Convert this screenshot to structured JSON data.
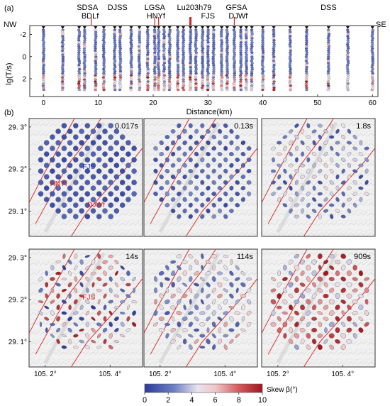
{
  "panel_a": {
    "label": "(a)",
    "corner_left": "NW",
    "corner_right": "SE",
    "fault_labels_upper": [
      {
        "text": "SDSA",
        "x": 8.0
      },
      {
        "text": "DJSS",
        "x": 13.5
      },
      {
        "text": "LGSA",
        "x": 20.3
      },
      {
        "text": "Lu203h79",
        "x": 27.5
      },
      {
        "text": "GFSA",
        "x": 35.2
      },
      {
        "text": "DSS",
        "x": 52.0
      }
    ],
    "fault_labels_lower": [
      {
        "text": "BDLf",
        "x": 8.5
      },
      {
        "text": "HNYf",
        "x": 20.5
      },
      {
        "text": "FJS",
        "x": 30.0
      },
      {
        "text": "DJWf",
        "x": 35.5
      }
    ],
    "fault_markers": [
      8.7,
      20.3,
      21.0,
      26.8,
      34.8
    ]
  },
  "panel_b": {
    "label": "(b)",
    "colorbar_label": "Skew β(°)",
    "colorbar_ticks": [
      "0",
      "2",
      "4",
      "6",
      "8",
      "10"
    ],
    "maps": [
      {
        "period": "0.017s",
        "annotations": [
          {
            "text": "HNYf",
            "lon": 105.215,
            "lat": 29.16,
            "color": "#d42020"
          },
          {
            "text": "FJS",
            "lon": 105.315,
            "lat": 29.2,
            "color": "#1e3aa8"
          },
          {
            "text": "DJWf",
            "lon": 105.33,
            "lat": 29.11,
            "color": "#d42020"
          }
        ]
      },
      {
        "period": "0.13s",
        "annotations": []
      },
      {
        "period": "1.8s",
        "annotations": []
      },
      {
        "period": "14s",
        "annotations": [
          {
            "text": "FJS",
            "lon": 105.315,
            "lat": 29.2,
            "color": "#d42020"
          }
        ]
      },
      {
        "period": "114s",
        "annotations": []
      },
      {
        "period": "909s",
        "annotations": []
      }
    ],
    "y_ticks": [
      "29. 3°",
      "29. 2°",
      "29. 1°"
    ],
    "x_ticks": [
      "105. 2°",
      "105. 4°"
    ]
  },
  "chart_data": [
    {
      "type": "scatter",
      "xlabel": "Distance(km)",
      "ylabel": "lg(T/s)",
      "xlim": [
        -2.5,
        61
      ],
      "ylim": [
        -2.8,
        3.6
      ],
      "x_ticks": [
        0,
        10,
        20,
        30,
        40,
        50,
        60
      ],
      "y_ticks": [
        -2,
        0,
        2
      ],
      "stations_km": [
        0,
        3.5,
        6.5,
        7.5,
        9.5,
        11,
        13,
        14,
        16,
        17.5,
        19,
        20.3,
        21,
        22,
        23,
        24.5,
        25.5,
        26.8,
        27.8,
        29,
        30,
        31,
        32.5,
        33.5,
        34.8,
        36,
        37,
        38,
        40,
        42,
        45,
        48,
        52,
        55.5,
        60
      ],
      "period_range_lg": [
        -2.4,
        3.0
      ],
      "color_scale": {
        "name": "Skew β(°)",
        "min": 0,
        "max": 10
      }
    },
    {
      "type": "scatter",
      "description_axes": {
        "lon_range": [
          105.15,
          105.5
        ],
        "lat_range": [
          29.04,
          29.32
        ]
      },
      "periods": [
        "0.017s",
        "0.13s",
        "1.8s",
        "14s",
        "114s",
        "909s"
      ],
      "grid_center": {
        "lon": 105.33,
        "lat": 29.195
      },
      "color_scale": {
        "name": "Skew β(°)",
        "min": 0,
        "max": 10
      }
    }
  ]
}
